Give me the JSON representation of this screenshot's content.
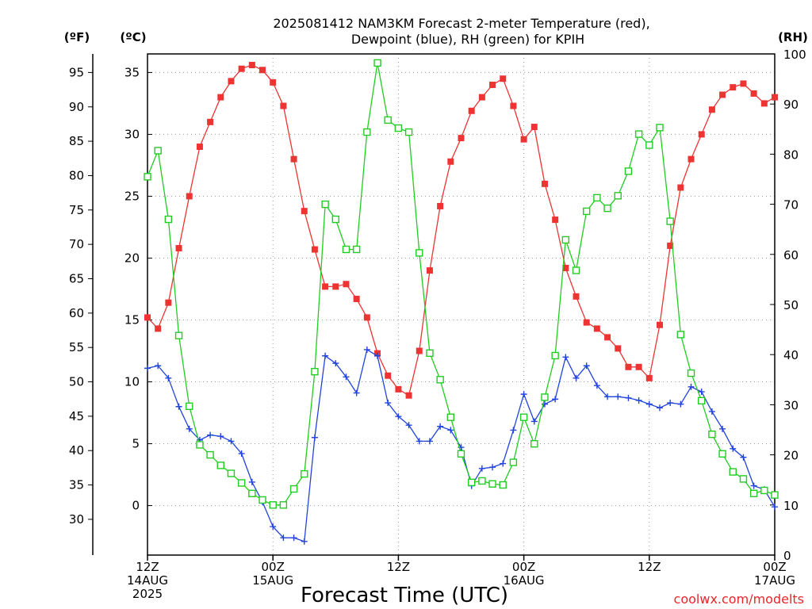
{
  "chart_data": {
    "type": "line",
    "title": [
      "2025081412 NAM3KM Forecast 2-meter Temperature (red),",
      "Dewpoint (blue), RH (green) for KPIH"
    ],
    "xlabel": "Forecast Time (UTC)",
    "credit": "coolwx.com/modelts",
    "units": {
      "fahrenheit": "(ºF)",
      "celsius": "(ºC)",
      "rh": "(RH)"
    },
    "x_hours": [
      0,
      1,
      2,
      3,
      4,
      5,
      6,
      7,
      8,
      9,
      10,
      11,
      12,
      13,
      14,
      15,
      16,
      17,
      18,
      19,
      20,
      21,
      22,
      23,
      24,
      25,
      26,
      27,
      28,
      29,
      30,
      31,
      32,
      33,
      34,
      35,
      36,
      37,
      38,
      39,
      40,
      41,
      42,
      43,
      44,
      45,
      46,
      47,
      48,
      49,
      50,
      51,
      52,
      53,
      54,
      55,
      56,
      57,
      58,
      59,
      60
    ],
    "x_ticks": [
      {
        "hour": 0,
        "lines": [
          "12Z",
          "14AUG",
          "2025"
        ]
      },
      {
        "hour": 12,
        "lines": [
          "00Z",
          "15AUG"
        ]
      },
      {
        "hour": 24,
        "lines": [
          "12Z"
        ]
      },
      {
        "hour": 36,
        "lines": [
          "00Z",
          "16AUG"
        ]
      },
      {
        "hour": 48,
        "lines": [
          "12Z"
        ]
      },
      {
        "hour": 60,
        "lines": [
          "00Z",
          "17AUG"
        ]
      }
    ],
    "xlim": [
      0,
      60
    ],
    "celsius_axis": {
      "ylim": [
        -4,
        36.5
      ],
      "ticks": [
        0,
        5,
        10,
        15,
        20,
        25,
        30,
        35
      ]
    },
    "fahrenheit_axis": {
      "ticks": [
        30,
        35,
        40,
        45,
        50,
        55,
        60,
        65,
        70,
        75,
        80,
        85,
        90,
        95
      ]
    },
    "rh_axis": {
      "ylim": [
        0,
        100
      ],
      "ticks": [
        0,
        10,
        20,
        30,
        40,
        50,
        60,
        70,
        80,
        90,
        100
      ]
    },
    "grid": true,
    "series": [
      {
        "name": "Temperature",
        "axis": "celsius",
        "color": "#ee3333",
        "marker": "filled-square",
        "values": [
          15.2,
          14.3,
          16.4,
          20.8,
          25.0,
          29.0,
          31.0,
          33.0,
          34.3,
          35.3,
          35.6,
          35.2,
          34.2,
          32.3,
          28.0,
          23.8,
          20.7,
          17.7,
          17.7,
          17.9,
          16.7,
          15.2,
          12.3,
          10.5,
          9.4,
          8.9,
          12.5,
          19.0,
          24.2,
          27.8,
          29.7,
          31.9,
          33.0,
          34.0,
          34.5,
          32.3,
          29.6,
          30.6,
          26.0,
          23.1,
          19.2,
          16.9,
          14.8,
          14.3,
          13.6,
          12.7,
          11.2,
          11.2,
          10.3,
          14.6,
          21.0,
          25.7,
          28.0,
          30.0,
          32.0,
          33.2,
          33.8,
          34.1,
          33.3,
          32.5,
          33.0
        ]
      },
      {
        "name": "Dewpoint",
        "axis": "celsius",
        "color": "#2244dd",
        "marker": "plus",
        "values": [
          11.1,
          11.3,
          10.3,
          8.0,
          6.2,
          5.3,
          5.7,
          5.6,
          5.2,
          4.2,
          1.9,
          0.3,
          -1.7,
          -2.6,
          -2.6,
          -2.9,
          5.5,
          12.1,
          11.5,
          10.4,
          9.1,
          12.6,
          12.1,
          8.3,
          7.2,
          6.5,
          5.2,
          5.2,
          6.4,
          6.1,
          4.7,
          1.6,
          3.0,
          3.1,
          3.4,
          6.1,
          9.0,
          6.8,
          8.2,
          8.6,
          12.0,
          10.3,
          11.3,
          9.7,
          8.8,
          8.8,
          8.7,
          8.5,
          8.2,
          7.9,
          8.3,
          8.2,
          9.6,
          9.2,
          7.6,
          6.2,
          4.6,
          3.9,
          1.6,
          1.3,
          -0.1
        ]
      },
      {
        "name": "RH",
        "axis": "rh",
        "color": "#22cc22",
        "marker": "open-square",
        "values": [
          75.5,
          80.7,
          67.0,
          43.8,
          29.7,
          22.0,
          20.0,
          17.9,
          16.3,
          14.4,
          12.3,
          11.0,
          10.0,
          10.0,
          13.2,
          16.2,
          36.6,
          70.0,
          67.0,
          61.0,
          61.0,
          84.4,
          98.2,
          86.8,
          85.2,
          84.4,
          60.3,
          40.3,
          35.0,
          27.5,
          20.2,
          14.5,
          14.8,
          14.2,
          14.0,
          18.5,
          27.5,
          22.2,
          31.5,
          39.8,
          62.9,
          56.8,
          68.6,
          71.3,
          69.2,
          71.7,
          76.6,
          84.0,
          81.8,
          85.3,
          66.6,
          44.0,
          36.3,
          30.8,
          24.1,
          20.2,
          16.6,
          15.2,
          12.3,
          12.9,
          12.0
        ]
      }
    ]
  }
}
